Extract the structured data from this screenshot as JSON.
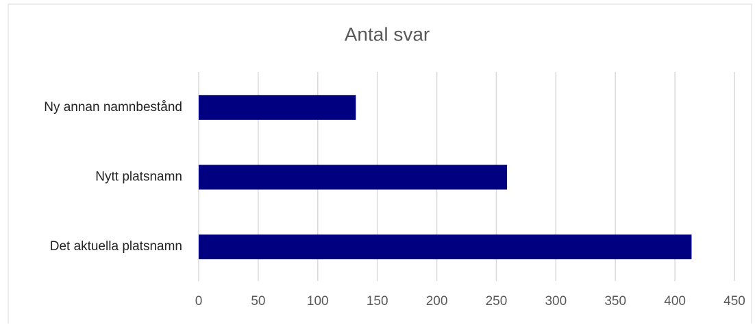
{
  "chart_data": {
    "type": "bar",
    "orientation": "horizontal",
    "title": "Antal svar",
    "categories": [
      "Ny annan namnbestånd",
      "Nytt platsnamn",
      "Det aktuella platsnamn"
    ],
    "values": [
      132,
      259,
      414
    ],
    "color": "#000080",
    "xlim": [
      0,
      450
    ],
    "xticks": [
      0,
      50,
      100,
      150,
      200,
      250,
      300,
      350,
      400,
      450
    ],
    "grid": true
  }
}
